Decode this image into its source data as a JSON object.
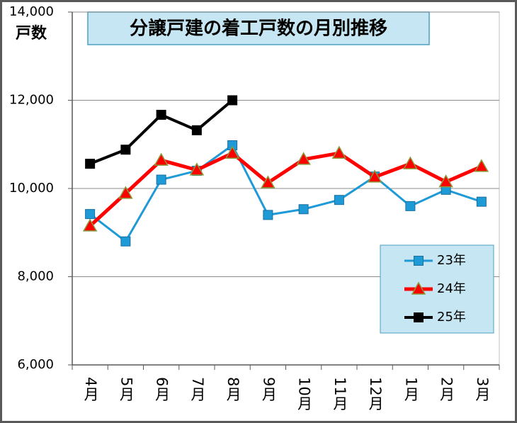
{
  "chart_data": {
    "type": "line",
    "title": "分譲戸建の着工戸数の月別推移",
    "y_label": "戸数",
    "categories": [
      "4月",
      "5月",
      "6月",
      "7月",
      "8月",
      "9月",
      "10月",
      "11月",
      "12月",
      "1月",
      "2月",
      "3月"
    ],
    "series": [
      {
        "name": "23年",
        "color": "#1e9ad6",
        "marker": "square",
        "values": [
          9420,
          8800,
          10200,
          10400,
          10980,
          9400,
          9530,
          9740,
          10270,
          9600,
          9970,
          9700
        ]
      },
      {
        "name": "24年",
        "color": "#ff0000",
        "marker": "triangle",
        "values": [
          9150,
          9890,
          10640,
          10420,
          10800,
          10130,
          10660,
          10800,
          10260,
          10560,
          10150,
          10500
        ]
      },
      {
        "name": "25年",
        "color": "#000000",
        "marker": "square",
        "values": [
          10560,
          10880,
          11670,
          11320,
          12000,
          null,
          null,
          null,
          null,
          null,
          null,
          null
        ]
      }
    ],
    "ylim": [
      6000,
      14000
    ],
    "yticks": [
      {
        "value": 6000,
        "label": "6,000"
      },
      {
        "value": 8000,
        "label": "8,000"
      },
      {
        "value": 10000,
        "label": "10,000"
      },
      {
        "value": 12000,
        "label": "12,000"
      },
      {
        "value": 14000,
        "label": "14,000"
      }
    ],
    "grid": true,
    "legend": "lower right"
  }
}
